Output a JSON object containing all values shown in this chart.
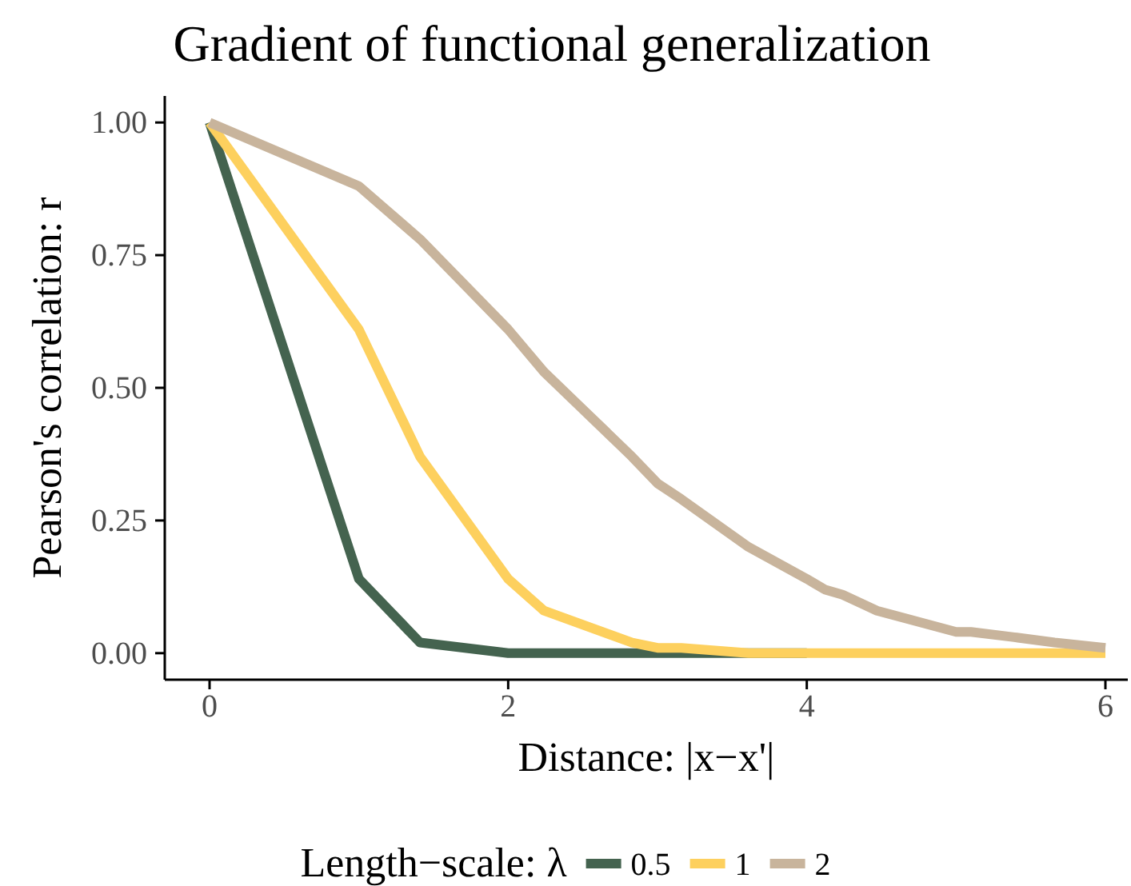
{
  "chart_data": {
    "type": "line",
    "title": "Gradient of functional generalization",
    "xlabel": "Distance: |x−x'|",
    "ylabel": "Pearson's correlation: r",
    "legend_title": "Length−scale: λ",
    "legend": "bottom",
    "grid": false,
    "line_style": "solid",
    "marker": "none",
    "x": [
      0,
      1,
      1.41,
      2,
      2.24,
      2.83,
      3,
      3.16,
      3.61,
      4,
      4.12,
      4.24,
      4.47,
      5,
      5.1,
      5.39,
      5.66,
      6
    ],
    "xlim": [
      -0.3,
      6.15
    ],
    "xticks": [
      0,
      2,
      4,
      6
    ],
    "ylim": [
      -0.05,
      1.05
    ],
    "yticks": [
      {
        "value": 0,
        "label": "0.00"
      },
      {
        "value": 0.25,
        "label": "0.25"
      },
      {
        "value": 0.5,
        "label": "0.50"
      },
      {
        "value": 0.75,
        "label": "0.75"
      },
      {
        "value": 1,
        "label": "1.00"
      }
    ],
    "series": [
      {
        "name": "0.5",
        "color": "#44634f",
        "values": [
          1,
          0.14,
          0.02,
          0,
          0,
          0,
          0,
          0,
          0,
          0,
          null,
          null,
          null,
          null,
          null,
          null,
          null,
          null
        ]
      },
      {
        "name": "1",
        "color": "#fdd05e",
        "values": [
          1,
          0.61,
          0.37,
          0.14,
          0.08,
          0.02,
          0.01,
          0.01,
          0,
          0,
          0,
          0,
          0,
          0,
          0,
          0,
          0,
          0
        ]
      },
      {
        "name": "2",
        "color": "#c8b49c",
        "values": [
          1,
          0.88,
          0.78,
          0.61,
          0.53,
          0.37,
          0.32,
          0.29,
          0.2,
          0.14,
          0.12,
          0.11,
          0.08,
          0.04,
          0.04,
          0.03,
          0.02,
          0.01
        ]
      }
    ]
  }
}
